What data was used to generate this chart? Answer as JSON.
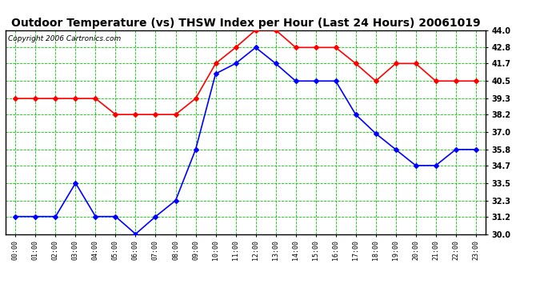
{
  "title": "Outdoor Temperature (vs) THSW Index per Hour (Last 24 Hours) 20061019",
  "copyright": "Copyright 2006 Cartronics.com",
  "hours": [
    "00:00",
    "01:00",
    "02:00",
    "03:00",
    "04:00",
    "05:00",
    "06:00",
    "07:00",
    "08:00",
    "09:00",
    "10:00",
    "11:00",
    "12:00",
    "13:00",
    "14:00",
    "15:00",
    "16:00",
    "17:00",
    "18:00",
    "19:00",
    "20:00",
    "21:00",
    "22:00",
    "23:00"
  ],
  "temp": [
    31.2,
    31.2,
    31.2,
    33.5,
    31.2,
    31.2,
    30.0,
    31.2,
    32.3,
    35.8,
    41.0,
    41.7,
    42.8,
    41.7,
    40.5,
    40.5,
    40.5,
    38.2,
    36.9,
    35.8,
    34.7,
    34.7,
    35.8,
    35.8
  ],
  "thsw": [
    39.3,
    39.3,
    39.3,
    39.3,
    39.3,
    38.2,
    38.2,
    38.2,
    38.2,
    39.3,
    41.7,
    42.8,
    44.0,
    44.0,
    42.8,
    42.8,
    42.8,
    41.7,
    40.5,
    41.7,
    41.7,
    40.5,
    40.5,
    40.5
  ],
  "temp_color": "#0000ff",
  "thsw_color": "#ff0000",
  "bg_color": "#ffffff",
  "plot_bg_color": "#ffffff",
  "grid_color": "#00cc00",
  "title_color": "#000000",
  "ymin": 30.0,
  "ymax": 44.0,
  "yticks": [
    30.0,
    31.2,
    32.3,
    33.5,
    34.7,
    35.8,
    37.0,
    38.2,
    39.3,
    40.5,
    41.7,
    42.8,
    44.0
  ],
  "title_fontsize": 10,
  "copyright_fontsize": 6.5,
  "marker": "D",
  "markersize": 3,
  "linewidth": 1.2
}
